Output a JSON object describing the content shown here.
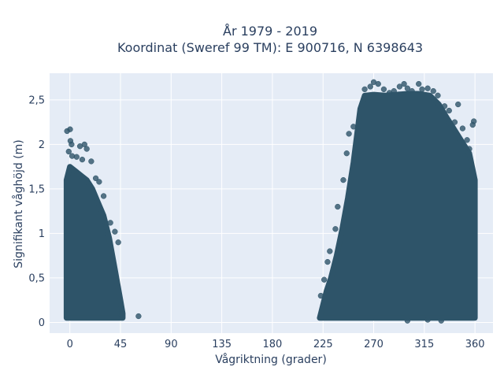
{
  "chart_data": {
    "type": "scatter",
    "title_line1": "År 1979 - 2019",
    "title_line2": "Koordinat (Sweref 99 TM): E 900716, N 6398643",
    "xlabel": "Vågriktning (grader)",
    "ylabel": "Signifikant våghöjd (m)",
    "xlim": [
      -18,
      376
    ],
    "ylim": [
      -0.12,
      2.8
    ],
    "x_ticks": [
      0,
      45,
      90,
      135,
      180,
      225,
      270,
      315,
      360
    ],
    "x_tick_labels": [
      "0",
      "45",
      "90",
      "135",
      "180",
      "225",
      "270",
      "315",
      "360"
    ],
    "y_ticks": [
      0,
      0.5,
      1,
      1.5,
      2,
      2.5
    ],
    "y_tick_labels": [
      "0",
      "0,5",
      "1",
      "1,5",
      "2",
      "2,5"
    ],
    "grid": true,
    "marker_color": "#2e5469",
    "background_color": "#e5ecf6",
    "clusters": [
      {
        "name": "north",
        "envelope": [
          [
            -3,
            0.05
          ],
          [
            -3,
            1.6
          ],
          [
            0,
            1.75
          ],
          [
            5,
            1.7
          ],
          [
            10,
            1.65
          ],
          [
            15,
            1.6
          ],
          [
            20,
            1.5
          ],
          [
            25,
            1.35
          ],
          [
            30,
            1.2
          ],
          [
            35,
            0.95
          ],
          [
            40,
            0.6
          ],
          [
            45,
            0.25
          ],
          [
            47,
            0.1
          ],
          [
            47,
            0.05
          ]
        ]
      },
      {
        "name": "west",
        "envelope": [
          [
            222,
            0.05
          ],
          [
            225,
            0.2
          ],
          [
            228,
            0.35
          ],
          [
            232,
            0.5
          ],
          [
            237,
            0.75
          ],
          [
            242,
            1.05
          ],
          [
            247,
            1.4
          ],
          [
            252,
            1.8
          ],
          [
            255,
            2.1
          ],
          [
            258,
            2.4
          ],
          [
            262,
            2.55
          ],
          [
            270,
            2.56
          ],
          [
            280,
            2.55
          ],
          [
            290,
            2.56
          ],
          [
            300,
            2.57
          ],
          [
            310,
            2.57
          ],
          [
            320,
            2.55
          ],
          [
            328,
            2.45
          ],
          [
            335,
            2.3
          ],
          [
            340,
            2.2
          ],
          [
            345,
            2.1
          ],
          [
            350,
            2.0
          ],
          [
            355,
            1.9
          ],
          [
            360,
            1.6
          ],
          [
            360,
            0.05
          ]
        ]
      }
    ],
    "outliers": [
      {
        "x": 0.2,
        "y": 2.17
      },
      {
        "x": -2.5,
        "y": 2.15
      },
      {
        "x": 0.5,
        "y": 2.04
      },
      {
        "x": 1.5,
        "y": 2.0
      },
      {
        "x": 9,
        "y": 1.98
      },
      {
        "x": 13,
        "y": 2.0
      },
      {
        "x": 15,
        "y": 1.95
      },
      {
        "x": -1,
        "y": 1.92
      },
      {
        "x": 2,
        "y": 1.87
      },
      {
        "x": 6,
        "y": 1.86
      },
      {
        "x": 19,
        "y": 1.81
      },
      {
        "x": 11,
        "y": 1.83
      },
      {
        "x": 23,
        "y": 1.62
      },
      {
        "x": 26,
        "y": 1.58
      },
      {
        "x": 30,
        "y": 1.42
      },
      {
        "x": 36,
        "y": 1.12
      },
      {
        "x": 40,
        "y": 1.02
      },
      {
        "x": 43,
        "y": 0.9
      },
      {
        "x": 61,
        "y": 0.07
      },
      {
        "x": 45,
        "y": 0.1
      },
      {
        "x": 46,
        "y": 0.08
      },
      {
        "x": 262,
        "y": 2.62
      },
      {
        "x": 267,
        "y": 2.65
      },
      {
        "x": 270,
        "y": 2.7
      },
      {
        "x": 274,
        "y": 2.68
      },
      {
        "x": 279,
        "y": 2.62
      },
      {
        "x": 284,
        "y": 2.58
      },
      {
        "x": 288,
        "y": 2.6
      },
      {
        "x": 293,
        "y": 2.65
      },
      {
        "x": 297,
        "y": 2.68
      },
      {
        "x": 300,
        "y": 2.63
      },
      {
        "x": 304,
        "y": 2.6
      },
      {
        "x": 310,
        "y": 2.68
      },
      {
        "x": 313,
        "y": 2.62
      },
      {
        "x": 318,
        "y": 2.63
      },
      {
        "x": 323,
        "y": 2.6
      },
      {
        "x": 327,
        "y": 2.55
      },
      {
        "x": 333,
        "y": 2.43
      },
      {
        "x": 337,
        "y": 2.38
      },
      {
        "x": 342,
        "y": 2.25
      },
      {
        "x": 345,
        "y": 2.45
      },
      {
        "x": 349,
        "y": 2.18
      },
      {
        "x": 353,
        "y": 2.05
      },
      {
        "x": 358,
        "y": 2.22
      },
      {
        "x": 359,
        "y": 2.26
      },
      {
        "x": 355,
        "y": 1.95
      },
      {
        "x": 248,
        "y": 2.12
      },
      {
        "x": 252,
        "y": 2.2
      },
      {
        "x": 246,
        "y": 1.9
      },
      {
        "x": 243,
        "y": 1.6
      },
      {
        "x": 238,
        "y": 1.3
      },
      {
        "x": 236,
        "y": 1.05
      },
      {
        "x": 231,
        "y": 0.8
      },
      {
        "x": 229,
        "y": 0.68
      },
      {
        "x": 226,
        "y": 0.48
      },
      {
        "x": 223,
        "y": 0.3
      },
      {
        "x": 300,
        "y": 0.02
      },
      {
        "x": 318,
        "y": 0.03
      },
      {
        "x": 330,
        "y": 0.02
      }
    ]
  }
}
